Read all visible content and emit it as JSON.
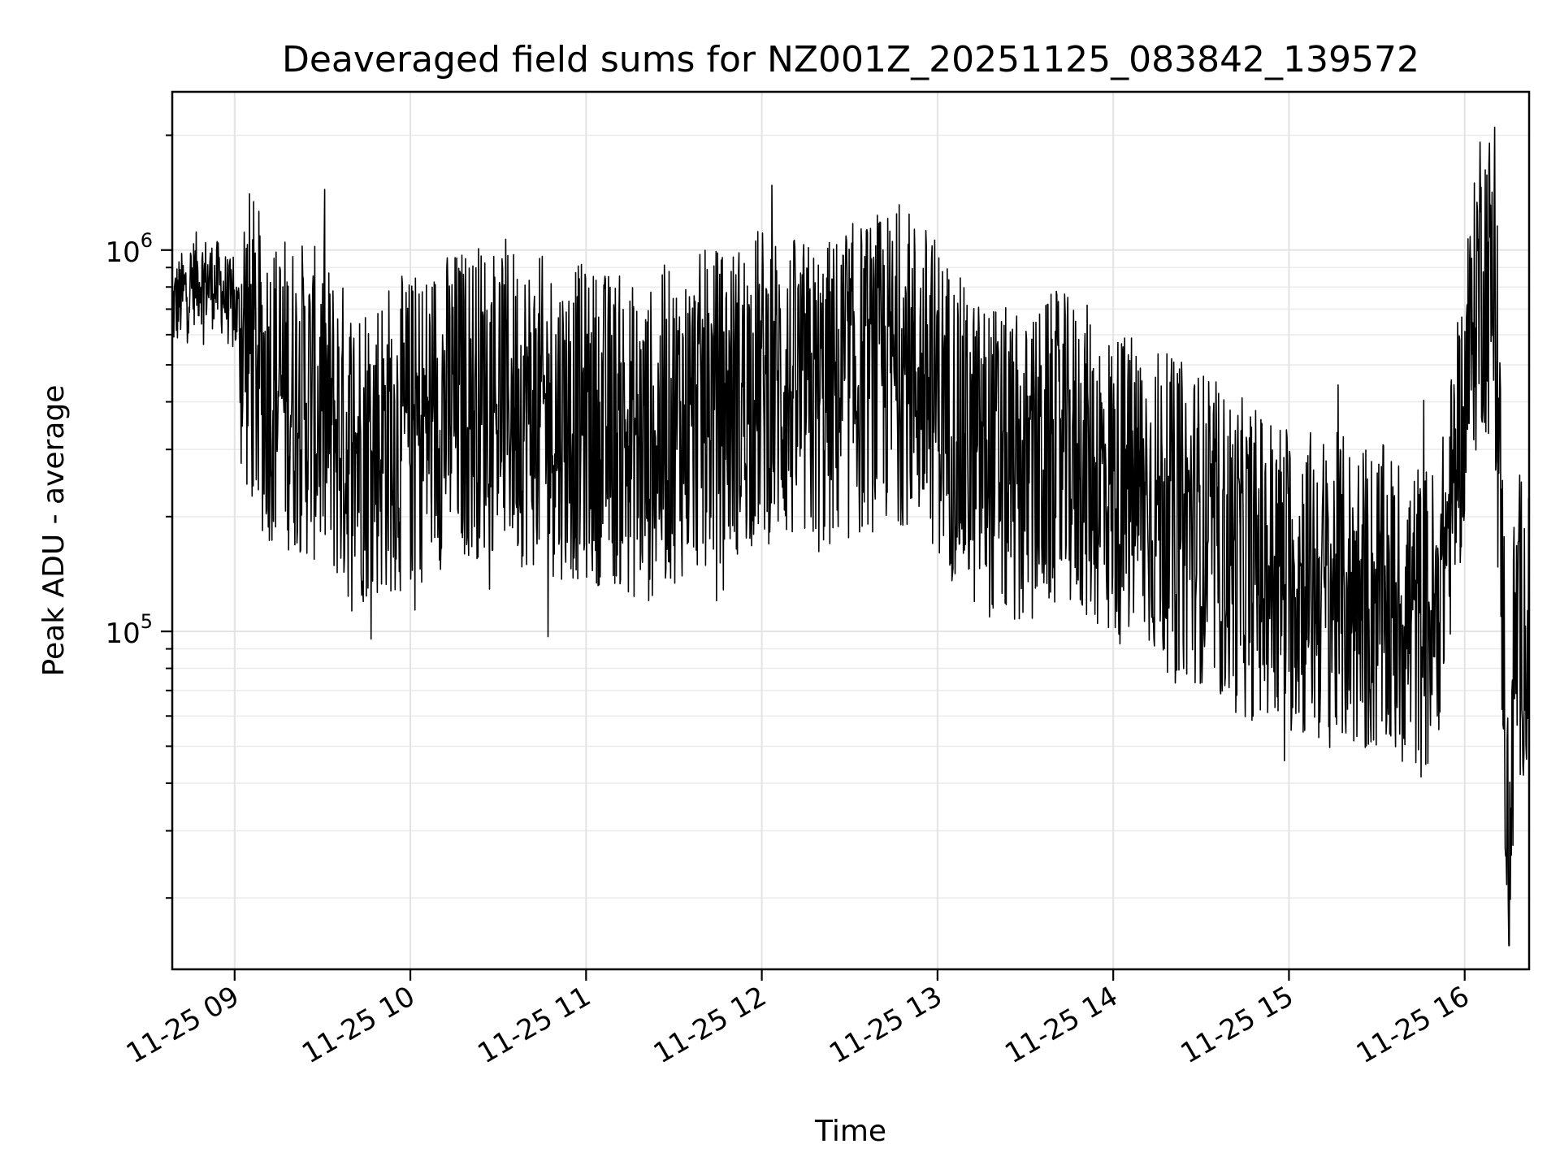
{
  "chart_data": {
    "type": "line",
    "title": "Deaveraged field sums for NZ001Z_20251125_083842_139572",
    "xlabel": "Time",
    "ylabel": "Peak ADU - average",
    "xlim": [
      "2025-11-25 08:38:42",
      "2025-11-25 16:22"
    ],
    "ylim": [
      13000,
      2600000
    ],
    "yscale": "log",
    "x_tick_labels": [
      "11-25 09",
      "11-25 10",
      "11-25 11",
      "11-25 12",
      "11-25 13",
      "11-25 14",
      "11-25 15",
      "11-25 16"
    ],
    "y_tick_labels": [
      {
        "base": "10",
        "exp": "5",
        "value": 100000
      },
      {
        "base": "10",
        "exp": "6",
        "value": 1000000
      }
    ],
    "grid": true,
    "line_color": "#000000",
    "series": [
      {
        "x": [
          "2025-11-25 08:38:42",
          "2025-11-25 08:47",
          "2025-11-25 08:55",
          "2025-11-25 09:02",
          "2025-11-25 09:10",
          "2025-11-25 09:20",
          "2025-11-25 09:30",
          "2025-11-25 09:40",
          "2025-11-25 09:50",
          "2025-11-25 10:00",
          "2025-11-25 10:10",
          "2025-11-25 10:20",
          "2025-11-25 10:30",
          "2025-11-25 10:40",
          "2025-11-25 10:50",
          "2025-11-25 11:00",
          "2025-11-25 11:10",
          "2025-11-25 11:20",
          "2025-11-25 11:30",
          "2025-11-25 11:40",
          "2025-11-25 11:50",
          "2025-11-25 12:00",
          "2025-11-25 12:10",
          "2025-11-25 12:20",
          "2025-11-25 12:30",
          "2025-11-25 12:40",
          "2025-11-25 12:50",
          "2025-11-25 13:00",
          "2025-11-25 13:10",
          "2025-11-25 13:20",
          "2025-11-25 13:30",
          "2025-11-25 13:40",
          "2025-11-25 13:50",
          "2025-11-25 14:00",
          "2025-11-25 14:10",
          "2025-11-25 14:20",
          "2025-11-25 14:30",
          "2025-11-25 14:40",
          "2025-11-25 14:50",
          "2025-11-25 15:00",
          "2025-11-25 15:10",
          "2025-11-25 15:20",
          "2025-11-25 15:30",
          "2025-11-25 15:40",
          "2025-11-25 15:50",
          "2025-11-25 16:00",
          "2025-11-25 16:05",
          "2025-11-25 16:10",
          "2025-11-25 16:13",
          "2025-11-25 16:15",
          "2025-11-25 16:17",
          "2025-11-25 16:20",
          "2025-11-25 16:22"
        ],
        "y": [
          700000,
          850000,
          800000,
          650000,
          450000,
          420000,
          380000,
          300000,
          320000,
          330000,
          380000,
          400000,
          420000,
          380000,
          360000,
          350000,
          340000,
          300000,
          350000,
          380000,
          400000,
          450000,
          420000,
          400000,
          450000,
          480000,
          500000,
          420000,
          300000,
          280000,
          250000,
          300000,
          280000,
          240000,
          230000,
          200000,
          190000,
          160000,
          150000,
          140000,
          130000,
          125000,
          120000,
          110000,
          105000,
          400000,
          900000,
          800000,
          120000,
          22000,
          90000,
          110000,
          85000
        ]
      }
    ]
  }
}
